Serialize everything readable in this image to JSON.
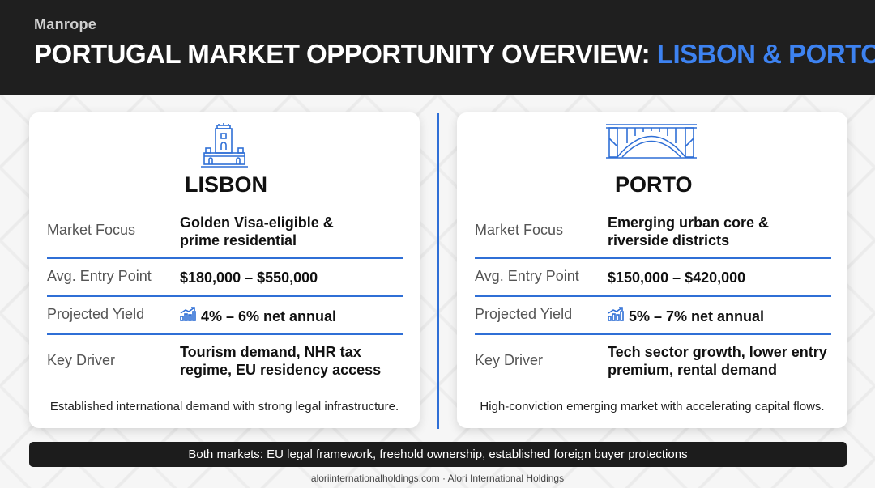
{
  "header": {
    "brand": "Manrope",
    "title_main": "PORTUGAL MARKET OPPORTUNITY OVERVIEW: ",
    "title_accent": "LISBON & PORTO"
  },
  "colors": {
    "accent": "#3d82f0",
    "rule": "#2f6fd6",
    "header_bg": "#1f1f1f"
  },
  "lisbon": {
    "icon": "belem-tower-icon",
    "city": "LISBON",
    "rows": [
      {
        "label": "Market Focus",
        "value_line1": "Golden Visa-eligible &",
        "value_line2": "prime residential"
      },
      {
        "label": "Avg. Entry Point",
        "value": "$180,000 – $550,000"
      },
      {
        "label": "Projected Yield",
        "value": "4% – 6% net annual",
        "icon": "growth-chart-icon"
      },
      {
        "label": "Key Driver",
        "value_line1": "Tourism demand, NHR tax",
        "value_line2": "regime, EU residency access"
      }
    ],
    "summary": "Established international demand with strong legal infrastructure."
  },
  "porto": {
    "icon": "bridge-icon",
    "city": "PORTO",
    "rows": [
      {
        "label": "Market Focus",
        "value_line1": "Emerging urban core &",
        "value_line2": "riverside districts"
      },
      {
        "label": "Avg. Entry Point",
        "value": "$150,000 – $420,000"
      },
      {
        "label": "Projected Yield",
        "value": "5% – 7% net annual",
        "icon": "growth-chart-icon"
      },
      {
        "label": "Key Driver",
        "value_line1": "Tech sector growth, lower entry",
        "value_line2": "premium, rental demand"
      }
    ],
    "summary": "High-conviction emerging market with accelerating capital flows."
  },
  "banner": "Both markets: EU legal framework, freehold ownership, established foreign buyer protections",
  "footer": "aloriinternationalholdings.com · Alori International Holdings"
}
